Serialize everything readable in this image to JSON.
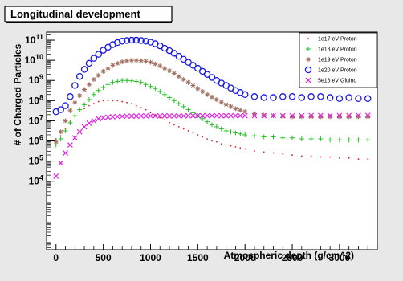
{
  "chart_data": {
    "type": "scatter",
    "title": "Longitudinal development",
    "xlabel": "Atmospheric depth (g/cm^2)",
    "ylabel": "# of Charged Particles",
    "xlim": [
      -100,
      3400
    ],
    "ylim": [
      0.6,
      11.4
    ],
    "yscale": "log",
    "x_ticks": [
      0,
      500,
      1000,
      1500,
      2000,
      2500,
      3000
    ],
    "x_tick_labels": [
      "0",
      "500",
      "1000",
      "1500",
      "2000",
      "2500",
      "3000"
    ],
    "y_ticks": [
      4,
      5,
      6,
      7,
      8,
      9,
      10,
      11
    ],
    "y_tick_labels": [
      "10^4",
      "10^5",
      "10^6",
      "10^7",
      "10^8",
      "10^9",
      "10^10",
      "10^11"
    ],
    "y_values_are": "log10 of number of charged particles",
    "legend_position": "top-right",
    "grid": false,
    "series": [
      {
        "name": "1e17 eV Proton",
        "color": "#e02020",
        "marker": "dot",
        "x": [
          0,
          50,
          100,
          150,
          200,
          250,
          300,
          350,
          400,
          450,
          500,
          550,
          600,
          650,
          700,
          750,
          800,
          850,
          900,
          950,
          1000,
          1050,
          1100,
          1150,
          1200,
          1250,
          1300,
          1350,
          1400,
          1450,
          1500,
          1550,
          1600,
          1650,
          1700,
          1750,
          1800,
          1850,
          1900,
          1950,
          2000,
          2100,
          2200,
          2300,
          2400,
          2500,
          2600,
          2700,
          2800,
          2900,
          3000,
          3100,
          3200,
          3300
        ],
        "y": [
          6.1,
          6.25,
          6.6,
          6.95,
          7.2,
          7.45,
          7.6,
          7.75,
          7.85,
          7.95,
          8.0,
          8.0,
          8.0,
          8.0,
          7.95,
          7.9,
          7.85,
          7.75,
          7.65,
          7.55,
          7.4,
          7.3,
          7.15,
          7.05,
          6.9,
          6.8,
          6.7,
          6.6,
          6.5,
          6.4,
          6.3,
          6.2,
          6.1,
          6.0,
          5.95,
          5.85,
          5.8,
          5.75,
          5.7,
          5.65,
          5.6,
          5.5,
          5.45,
          5.4,
          5.35,
          5.3,
          5.25,
          5.25,
          5.2,
          5.2,
          5.15,
          5.15,
          5.1,
          5.1
        ]
      },
      {
        "name": "1e18 eV Proton",
        "color": "#20c020",
        "marker": "plus",
        "x": [
          0,
          50,
          100,
          150,
          200,
          250,
          300,
          350,
          400,
          450,
          500,
          550,
          600,
          650,
          700,
          750,
          800,
          850,
          900,
          950,
          1000,
          1050,
          1100,
          1150,
          1200,
          1250,
          1300,
          1350,
          1400,
          1450,
          1500,
          1550,
          1600,
          1650,
          1700,
          1750,
          1800,
          1850,
          1900,
          1950,
          2000,
          2100,
          2200,
          2300,
          2400,
          2500,
          2600,
          2700,
          2800,
          2900,
          3000,
          3100,
          3200,
          3300
        ],
        "y": [
          5.8,
          6.1,
          6.5,
          6.9,
          7.25,
          7.55,
          7.8,
          8.05,
          8.3,
          8.5,
          8.65,
          8.8,
          8.9,
          8.95,
          9.0,
          9.0,
          8.98,
          8.95,
          8.9,
          8.8,
          8.7,
          8.6,
          8.45,
          8.3,
          8.15,
          8.0,
          7.85,
          7.7,
          7.55,
          7.4,
          7.25,
          7.1,
          6.95,
          6.8,
          6.7,
          6.6,
          6.5,
          6.45,
          6.4,
          6.35,
          6.3,
          6.25,
          6.2,
          6.2,
          6.15,
          6.15,
          6.1,
          6.1,
          6.1,
          6.05,
          6.05,
          6.05,
          6.05,
          6.05
        ]
      },
      {
        "name": "1e19 eV Proton",
        "color": "#a07060",
        "marker": "star",
        "x": [
          0,
          50,
          100,
          150,
          200,
          250,
          300,
          350,
          400,
          450,
          500,
          550,
          600,
          650,
          700,
          750,
          800,
          850,
          900,
          950,
          1000,
          1050,
          1100,
          1150,
          1200,
          1250,
          1300,
          1350,
          1400,
          1450,
          1500,
          1550,
          1600,
          1650,
          1700,
          1750,
          1800,
          1850,
          1900,
          1950,
          2000,
          2100,
          2200,
          2300,
          2400,
          2500,
          2600,
          2700,
          2800,
          2900,
          3000,
          3100,
          3200,
          3300
        ],
        "y": [
          5.95,
          6.45,
          7.0,
          7.5,
          7.9,
          8.25,
          8.55,
          8.8,
          9.05,
          9.25,
          9.45,
          9.6,
          9.75,
          9.85,
          9.92,
          9.97,
          10.0,
          10.0,
          9.98,
          9.95,
          9.9,
          9.82,
          9.72,
          9.6,
          9.48,
          9.35,
          9.2,
          9.05,
          8.9,
          8.75,
          8.6,
          8.45,
          8.3,
          8.18,
          8.05,
          7.92,
          7.8,
          7.7,
          7.6,
          7.52,
          7.45,
          7.35,
          7.28,
          7.25,
          7.22,
          7.2,
          7.2,
          7.2,
          7.2,
          7.2,
          7.2,
          7.2,
          7.2,
          7.2
        ]
      },
      {
        "name": "1e20 eV Proton",
        "color": "#1a1ae0",
        "marker": "circle",
        "x": [
          0,
          50,
          100,
          150,
          200,
          250,
          300,
          350,
          400,
          450,
          500,
          550,
          600,
          650,
          700,
          750,
          800,
          850,
          900,
          950,
          1000,
          1050,
          1100,
          1150,
          1200,
          1250,
          1300,
          1350,
          1400,
          1450,
          1500,
          1550,
          1600,
          1650,
          1700,
          1750,
          1800,
          1850,
          1900,
          1950,
          2000,
          2100,
          2200,
          2300,
          2400,
          2500,
          2600,
          2700,
          2800,
          2900,
          3000,
          3100,
          3200,
          3300
        ],
        "y": [
          7.45,
          7.55,
          7.75,
          8.2,
          8.75,
          9.2,
          9.55,
          9.85,
          10.1,
          10.3,
          10.5,
          10.65,
          10.78,
          10.88,
          10.95,
          10.98,
          11.0,
          11.0,
          10.98,
          10.95,
          10.9,
          10.82,
          10.72,
          10.6,
          10.48,
          10.35,
          10.2,
          10.05,
          9.9,
          9.75,
          9.6,
          9.45,
          9.3,
          9.15,
          9.0,
          8.87,
          8.75,
          8.62,
          8.5,
          8.4,
          8.3,
          8.2,
          8.15,
          8.15,
          8.2,
          8.2,
          8.15,
          8.2,
          8.2,
          8.15,
          8.1,
          8.15,
          8.1,
          8.1
        ]
      },
      {
        "name": "5e18 eV Gluino",
        "color": "#e020e0",
        "marker": "cross",
        "x": [
          0,
          50,
          100,
          150,
          200,
          250,
          300,
          350,
          400,
          450,
          500,
          550,
          600,
          650,
          700,
          750,
          800,
          850,
          900,
          950,
          1000,
          1050,
          1100,
          1150,
          1200,
          1250,
          1300,
          1350,
          1400,
          1450,
          1500,
          1550,
          1600,
          1650,
          1700,
          1750,
          1800,
          1850,
          1900,
          1950,
          2000,
          2100,
          2200,
          2300,
          2400,
          2500,
          2600,
          2700,
          2800,
          2900,
          3000,
          3100,
          3200,
          3300
        ],
        "y": [
          4.25,
          4.9,
          5.4,
          5.8,
          6.15,
          6.45,
          6.7,
          6.88,
          7.0,
          7.1,
          7.15,
          7.18,
          7.2,
          7.21,
          7.22,
          7.23,
          7.23,
          7.23,
          7.24,
          7.24,
          7.24,
          7.24,
          7.24,
          7.24,
          7.24,
          7.24,
          7.24,
          7.24,
          7.25,
          7.25,
          7.25,
          7.25,
          7.25,
          7.25,
          7.25,
          7.25,
          7.25,
          7.25,
          7.25,
          7.25,
          7.25,
          7.25,
          7.25,
          7.25,
          7.25,
          7.25,
          7.25,
          7.26,
          7.26,
          7.26,
          7.26,
          7.26,
          7.27,
          7.27
        ]
      }
    ]
  }
}
